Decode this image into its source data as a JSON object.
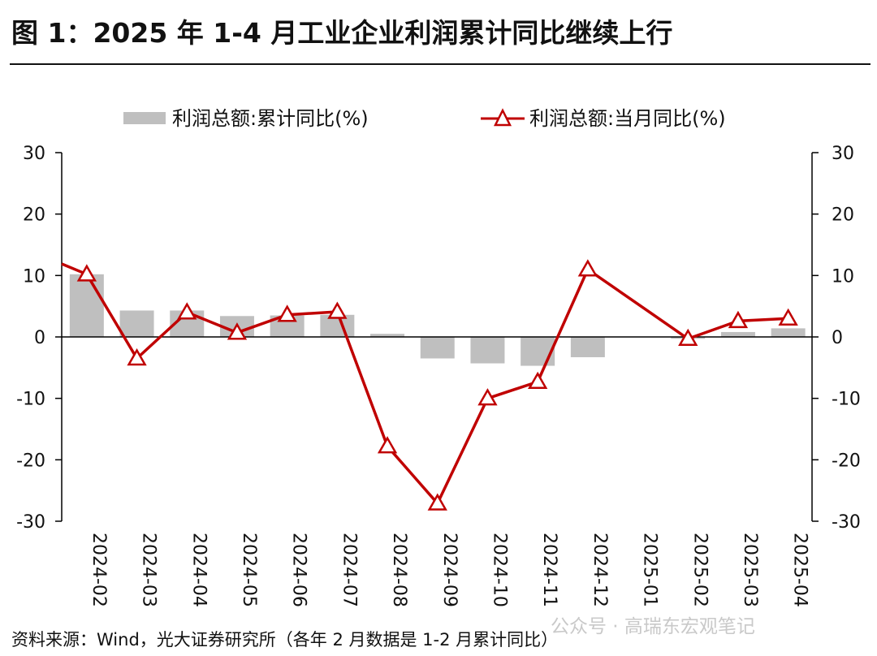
{
  "title": "图 1：2025 年 1-4 月工业企业利润累计同比继续上行",
  "source": "资料来源：Wind，光大证券研究所（各年 2 月数据是 1-2 月累计同比）",
  "watermark": "公众号 · 高瑞东宏观笔记",
  "colors": {
    "bar": "#bfbfbf",
    "line": "#c00000",
    "axis": "#000000"
  },
  "chart_data": {
    "type": "bar+line",
    "categories": [
      "2024-02",
      "2024-03",
      "2024-04",
      "2024-05",
      "2024-06",
      "2024-07",
      "2024-08",
      "2024-09",
      "2024-10",
      "2024-11",
      "2024-12",
      "2025-01",
      "2025-02",
      "2025-03",
      "2025-04"
    ],
    "series": [
      {
        "name": "利润总额:累计同比(%)",
        "type": "bar",
        "axis": "left",
        "values": [
          10.2,
          4.3,
          4.3,
          3.4,
          3.5,
          3.6,
          0.5,
          -3.5,
          -4.3,
          -4.7,
          -3.3,
          null,
          -0.3,
          0.8,
          1.4
        ]
      },
      {
        "name": "利润总额:当月同比(%)",
        "type": "line",
        "axis": "right",
        "marker": "triangle",
        "values": [
          10.2,
          -3.5,
          4.0,
          0.7,
          3.6,
          4.1,
          -17.8,
          -27.1,
          -10.0,
          -7.3,
          11.0,
          null,
          -0.3,
          2.6,
          3.0
        ],
        "line_start_value": 11.9
      }
    ],
    "ylim_left": [
      -30,
      30
    ],
    "ylim_right": [
      -30,
      30
    ],
    "yticks": [
      30,
      20,
      10,
      0,
      -10,
      -20,
      -30
    ],
    "legend_position": "top"
  }
}
